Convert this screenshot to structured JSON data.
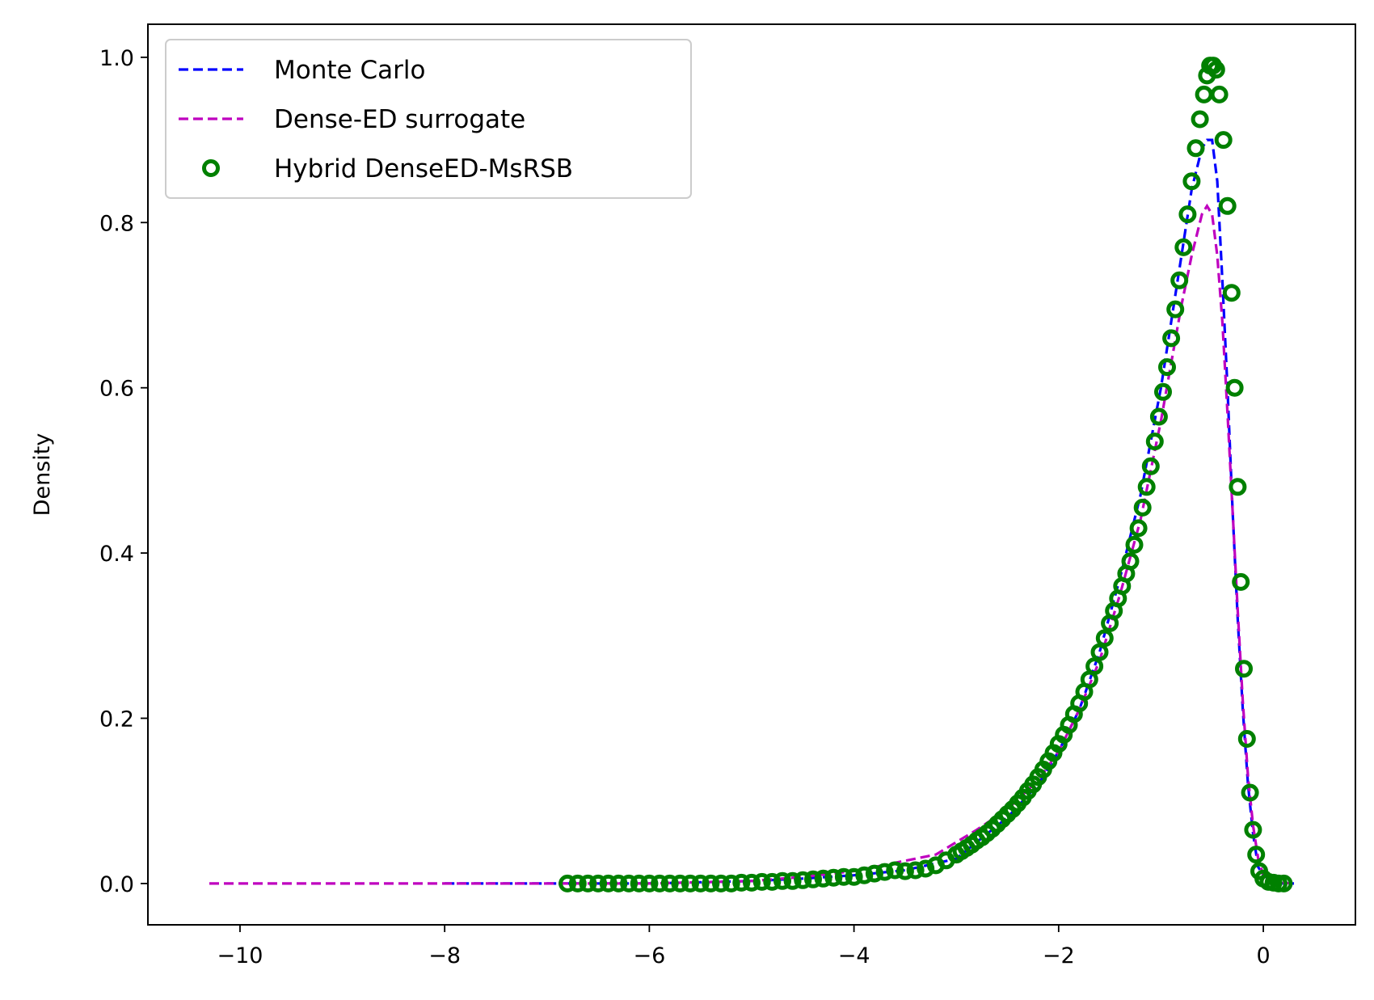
{
  "chart_data": {
    "type": "line",
    "xlabel": "",
    "ylabel": "Density",
    "xlim": [
      -10.9,
      0.9
    ],
    "ylim": [
      -0.05,
      1.04
    ],
    "xticks": [
      -10,
      -8,
      -6,
      -4,
      -2,
      0
    ],
    "xtick_labels": [
      "−10",
      "−8",
      "−6",
      "−4",
      "−2",
      "0"
    ],
    "yticks": [
      0.0,
      0.2,
      0.4,
      0.6,
      0.8,
      1.0
    ],
    "ytick_labels": [
      "0.0",
      "0.2",
      "0.4",
      "0.6",
      "0.8",
      "1.0"
    ],
    "grid": false,
    "legend_position": "top-left",
    "series": [
      {
        "name": "Monte Carlo",
        "style": "dashed-line",
        "color": "#0000ff",
        "x": [
          -8.0,
          -6.0,
          -5.0,
          -4.5,
          -4.0,
          -3.5,
          -3.0,
          -2.8,
          -2.5,
          -2.2,
          -2.0,
          -1.8,
          -1.6,
          -1.4,
          -1.2,
          -1.0,
          -0.9,
          -0.8,
          -0.7,
          -0.6,
          -0.55,
          -0.5,
          -0.45,
          -0.4,
          -0.35,
          -0.3,
          -0.25,
          -0.2,
          -0.15,
          -0.1,
          -0.05,
          0.0,
          0.1,
          0.2,
          0.3
        ],
        "y": [
          0.0,
          0.0,
          0.003,
          0.006,
          0.01,
          0.016,
          0.03,
          0.05,
          0.08,
          0.12,
          0.16,
          0.21,
          0.28,
          0.37,
          0.47,
          0.6,
          0.68,
          0.76,
          0.84,
          0.89,
          0.9,
          0.9,
          0.85,
          0.73,
          0.6,
          0.45,
          0.32,
          0.21,
          0.12,
          0.06,
          0.02,
          0.01,
          0.002,
          0.0,
          0.0
        ]
      },
      {
        "name": "Dense-ED surrogate",
        "style": "dashed-line",
        "color": "#bf00bf",
        "x": [
          -10.3,
          -9.0,
          -8.0,
          -7.0,
          -6.0,
          -5.0,
          -4.5,
          -4.0,
          -3.6,
          -3.2,
          -3.0,
          -2.8,
          -2.5,
          -2.2,
          -2.0,
          -1.8,
          -1.6,
          -1.4,
          -1.2,
          -1.0,
          -0.9,
          -0.8,
          -0.7,
          -0.6,
          -0.55,
          -0.5,
          -0.45,
          -0.4,
          -0.35,
          -0.3,
          -0.25,
          -0.2,
          -0.15,
          -0.1,
          -0.05,
          0.0,
          0.1,
          0.3
        ],
        "y": [
          0.0,
          0.0,
          0.0,
          0.0,
          0.0,
          0.003,
          0.008,
          0.015,
          0.025,
          0.035,
          0.05,
          0.065,
          0.09,
          0.125,
          0.16,
          0.21,
          0.27,
          0.35,
          0.44,
          0.56,
          0.63,
          0.7,
          0.76,
          0.81,
          0.82,
          0.81,
          0.76,
          0.68,
          0.57,
          0.45,
          0.33,
          0.22,
          0.13,
          0.07,
          0.03,
          0.01,
          0.002,
          0.0
        ]
      },
      {
        "name": "Hybrid DenseED-MsRSB",
        "style": "open-circle-markers",
        "color": "#008000",
        "x": [
          -6.8,
          -6.7,
          -6.6,
          -6.5,
          -6.4,
          -6.3,
          -6.2,
          -6.1,
          -6.0,
          -5.9,
          -5.8,
          -5.7,
          -5.6,
          -5.5,
          -5.4,
          -5.3,
          -5.2,
          -5.1,
          -5.0,
          -4.9,
          -4.8,
          -4.7,
          -4.6,
          -4.5,
          -4.4,
          -4.3,
          -4.2,
          -4.1,
          -4.0,
          -3.9,
          -3.8,
          -3.7,
          -3.6,
          -3.5,
          -3.4,
          -3.3,
          -3.2,
          -3.1,
          -3.0,
          -2.95,
          -2.9,
          -2.85,
          -2.8,
          -2.75,
          -2.7,
          -2.65,
          -2.6,
          -2.55,
          -2.5,
          -2.45,
          -2.4,
          -2.35,
          -2.3,
          -2.25,
          -2.2,
          -2.15,
          -2.1,
          -2.05,
          -2.0,
          -1.95,
          -1.9,
          -1.85,
          -1.8,
          -1.75,
          -1.7,
          -1.65,
          -1.6,
          -1.55,
          -1.5,
          -1.46,
          -1.42,
          -1.38,
          -1.34,
          -1.3,
          -1.26,
          -1.22,
          -1.18,
          -1.14,
          -1.1,
          -1.06,
          -1.02,
          -0.98,
          -0.94,
          -0.9,
          -0.86,
          -0.82,
          -0.78,
          -0.74,
          -0.7,
          -0.66,
          -0.62,
          -0.58,
          -0.55,
          -0.52,
          -0.49,
          -0.46,
          -0.43,
          -0.39,
          -0.35,
          -0.31,
          -0.28,
          -0.25,
          -0.22,
          -0.19,
          -0.16,
          -0.13,
          -0.1,
          -0.07,
          -0.04,
          0.0,
          0.05,
          0.1,
          0.15,
          0.2
        ],
        "y": [
          0.0,
          0.0,
          0.0,
          0.0,
          0.0,
          0.0,
          0.0,
          0.0,
          0.0,
          0.0,
          0.0,
          0.0,
          0.0,
          0.0,
          0.0,
          0.0,
          0.0,
          0.001,
          0.001,
          0.002,
          0.002,
          0.003,
          0.003,
          0.004,
          0.005,
          0.006,
          0.007,
          0.008,
          0.008,
          0.01,
          0.012,
          0.014,
          0.016,
          0.015,
          0.016,
          0.018,
          0.022,
          0.028,
          0.035,
          0.039,
          0.043,
          0.047,
          0.052,
          0.056,
          0.061,
          0.066,
          0.072,
          0.078,
          0.084,
          0.09,
          0.097,
          0.104,
          0.112,
          0.12,
          0.129,
          0.138,
          0.148,
          0.158,
          0.169,
          0.18,
          0.192,
          0.205,
          0.218,
          0.232,
          0.247,
          0.263,
          0.28,
          0.297,
          0.315,
          0.33,
          0.345,
          0.36,
          0.375,
          0.39,
          0.41,
          0.43,
          0.455,
          0.48,
          0.505,
          0.535,
          0.565,
          0.595,
          0.625,
          0.66,
          0.695,
          0.73,
          0.77,
          0.81,
          0.85,
          0.89,
          0.925,
          0.955,
          0.978,
          0.99,
          0.99,
          0.985,
          0.955,
          0.9,
          0.82,
          0.715,
          0.6,
          0.48,
          0.365,
          0.26,
          0.175,
          0.11,
          0.065,
          0.035,
          0.015,
          0.006,
          0.002,
          0.001,
          0.0,
          0.0
        ]
      }
    ]
  }
}
